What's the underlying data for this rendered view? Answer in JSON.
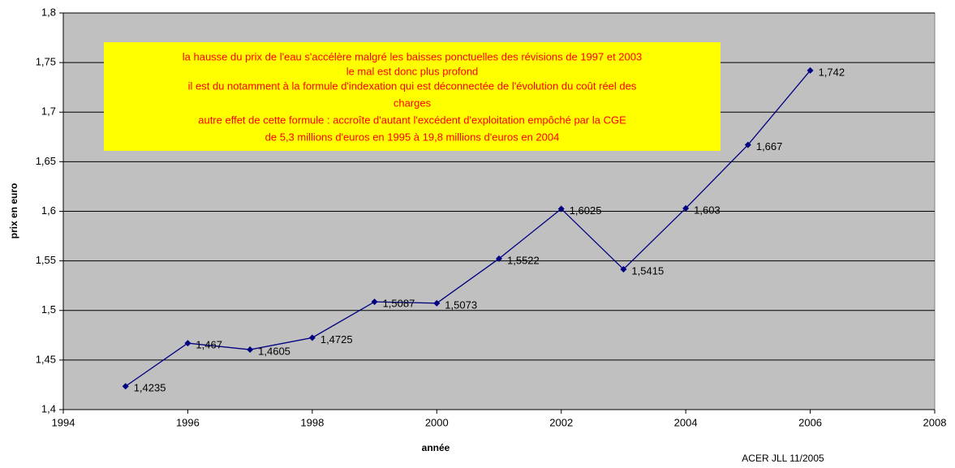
{
  "chart_data": {
    "type": "line",
    "x_label": "année",
    "y_label": "prix en euro",
    "annotation": [
      "la hausse du prix de l'eau s'accélère malgré les baisses ponctuelles des révisions de 1997 et 2003",
      "le mal est donc plus profond",
      "il est du notamment à la formule d'indexation qui est déconnectée de l'évolution du coût réel des",
      "charges",
      "autre effet de cette formule : accroîte d'autant l'excédent d'exploitation empôché par la CGE",
      "de 5,3 millions d'euros en 1995 à 19,8 millions d'euros en 2004"
    ],
    "footer": "ACER JLL 11/2005",
    "x": [
      1995,
      1996,
      1997,
      1998,
      1999,
      2000,
      2001,
      2002,
      2003,
      2004,
      2005,
      2006
    ],
    "series": [
      {
        "color": "#000080",
        "values": [
          1.4235,
          1.467,
          1.4605,
          1.4725,
          1.5087,
          1.5073,
          1.5522,
          1.6025,
          1.5415,
          1.603,
          1.667,
          1.742
        ],
        "value_labels": [
          "1,4235",
          "1,467",
          "1,4605",
          "1,4725",
          "1,5087",
          "1,5073",
          "1,5522",
          "1,6025",
          "1,5415",
          "1,603",
          "1,667",
          "1,742"
        ]
      }
    ],
    "xlim": [
      1994,
      2008
    ],
    "xticks": [
      1994,
      1996,
      1998,
      2000,
      2002,
      2004,
      2006,
      2008
    ],
    "ylim": [
      1.4,
      1.8
    ],
    "yticks": [
      {
        "value": 1.4,
        "label": "1,4"
      },
      {
        "value": 1.45,
        "label": "1,45"
      },
      {
        "value": 1.5,
        "label": "1,5"
      },
      {
        "value": 1.55,
        "label": "1,55"
      },
      {
        "value": 1.6,
        "label": "1,6"
      },
      {
        "value": 1.65,
        "label": "1,65"
      },
      {
        "value": 1.7,
        "label": "1,7"
      },
      {
        "value": 1.75,
        "label": "1,75"
      },
      {
        "value": 1.8,
        "label": "1,8"
      }
    ],
    "grid": true,
    "plot_background": "#c0c0c0",
    "annotation_background": "#ffff00"
  }
}
